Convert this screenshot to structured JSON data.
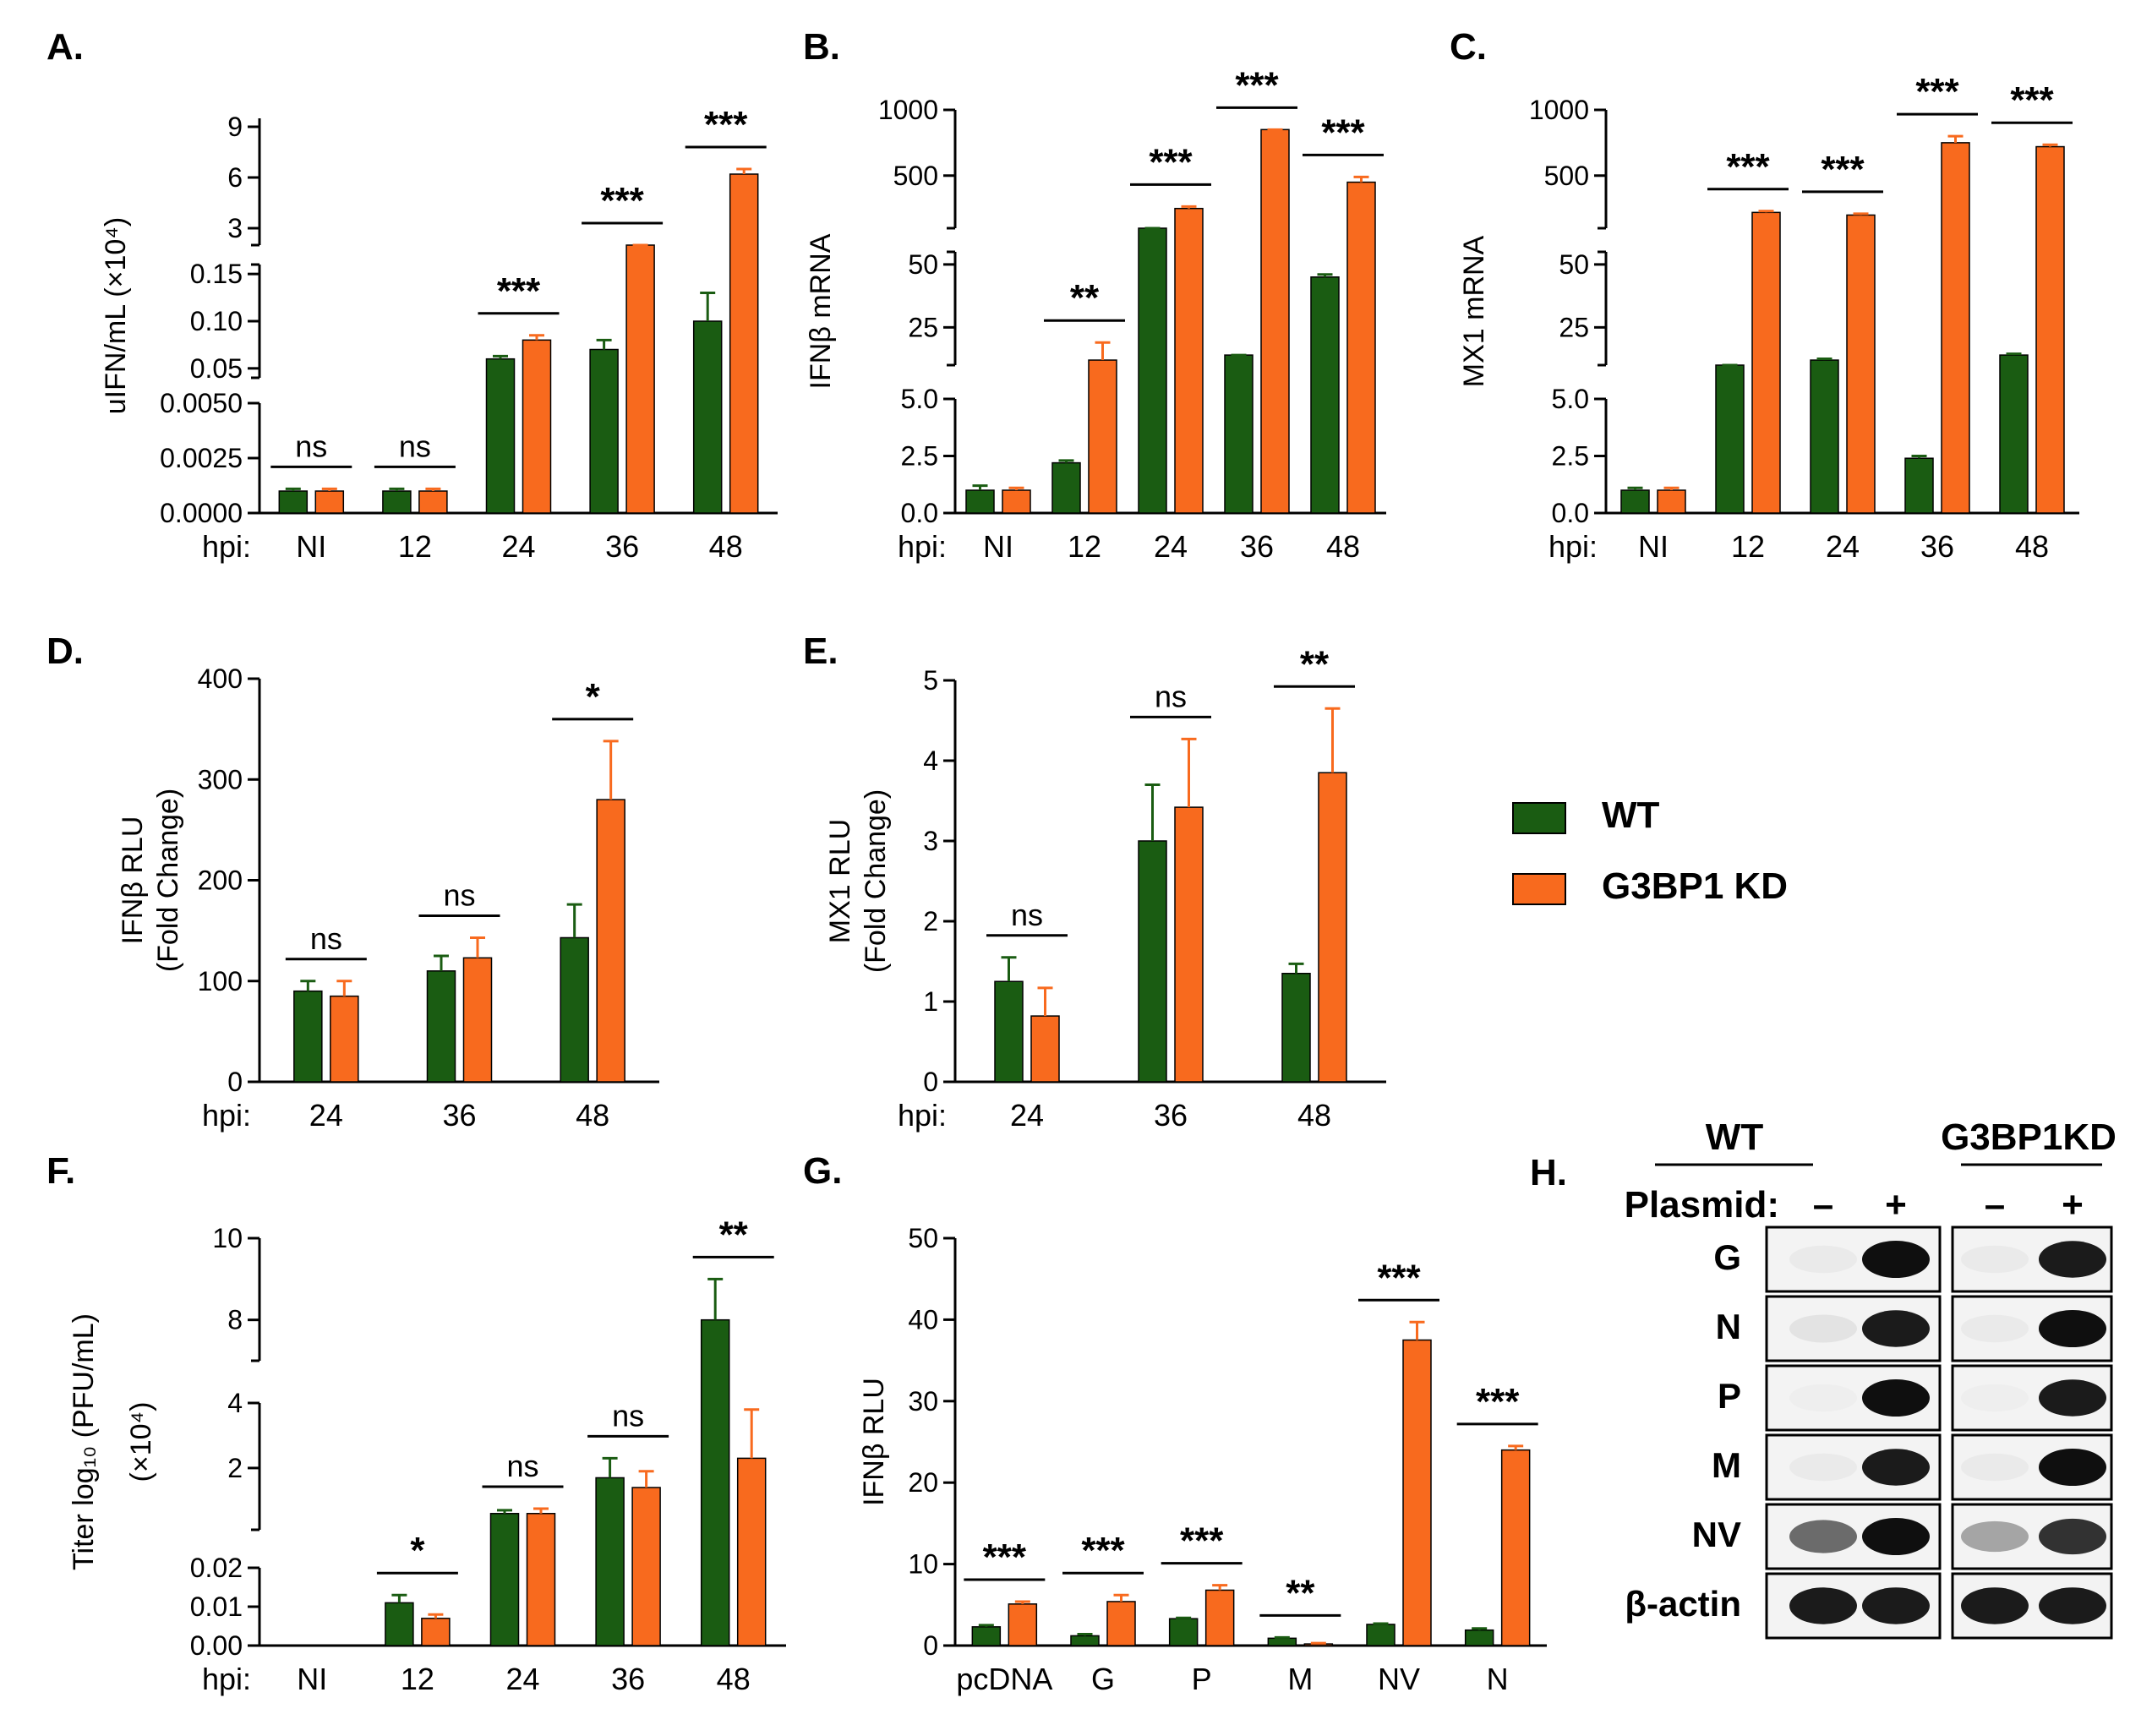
{
  "colors": {
    "wt": "#1a5c12",
    "kd": "#f86a1e",
    "axis": "#000000"
  },
  "legend": {
    "items": [
      {
        "label": "WT",
        "color": "#1a5c12"
      },
      {
        "label": "G3BP1 KD",
        "color": "#f86a1e"
      }
    ]
  },
  "chart_data": [
    {
      "panel": "A.",
      "type": "bar",
      "ylabel": "uIFN/mL (×10⁴)",
      "xprefix": "hpi:",
      "categories": [
        "NI",
        "12",
        "24",
        "36",
        "48"
      ],
      "series": [
        {
          "name": "WT",
          "values": [
            0.001,
            0.001,
            0.06,
            0.07,
            0.1
          ],
          "errors": [
            0.0001,
            0.0001,
            0.003,
            0.01,
            0.03
          ]
        },
        {
          "name": "G3BP1 KD",
          "values": [
            0.001,
            0.001,
            0.08,
            1.8,
            6.2
          ],
          "errors": [
            0.0001,
            0.0001,
            0.005,
            0.2,
            0.3
          ]
        }
      ],
      "segments": [
        {
          "range": [
            0,
            0.005
          ],
          "ticks": [
            {
              "v": 0,
              "t": "0.0000"
            },
            {
              "v": 0.0025,
              "t": "0.0025"
            },
            {
              "v": 0.005,
              "t": "0.0050"
            }
          ]
        },
        {
          "range": [
            0.04,
            0.16
          ],
          "ticks": [
            {
              "v": 0.05,
              "t": "0.05"
            },
            {
              "v": 0.1,
              "t": "0.10"
            },
            {
              "v": 0.15,
              "t": "0.15"
            }
          ]
        },
        {
          "range": [
            2,
            9.5
          ],
          "ticks": [
            {
              "v": 3,
              "t": "3"
            },
            {
              "v": 6,
              "t": "6"
            },
            {
              "v": 9,
              "t": "9"
            }
          ]
        }
      ],
      "significance": [
        "ns",
        "ns",
        "***",
        "***",
        "***"
      ]
    },
    {
      "panel": "B.",
      "type": "bar",
      "ylabel": "IFNβ mRNA",
      "xprefix": "hpi:",
      "categories": [
        "NI",
        "12",
        "24",
        "36",
        "48"
      ],
      "series": [
        {
          "name": "WT",
          "values": [
            1.0,
            2.2,
            70,
            14,
            45
          ],
          "errors": [
            0.2,
            0.1,
            3,
            0,
            1
          ]
        },
        {
          "name": "G3BP1 KD",
          "values": [
            1.0,
            12,
            250,
            850,
            450
          ],
          "errors": [
            0.1,
            7,
            15,
            0,
            40
          ]
        }
      ],
      "segments": [
        {
          "range": [
            0,
            5
          ],
          "ticks": [
            {
              "v": 0,
              "t": "0.0"
            },
            {
              "v": 2.5,
              "t": "2.5"
            },
            {
              "v": 5,
              "t": "5.0"
            }
          ]
        },
        {
          "range": [
            10,
            55
          ],
          "ticks": [
            {
              "v": 25,
              "t": "25"
            },
            {
              "v": 50,
              "t": "50"
            }
          ]
        },
        {
          "range": [
            100,
            1000
          ],
          "ticks": [
            {
              "v": 500,
              "t": "500"
            },
            {
              "v": 1000,
              "t": "1000"
            }
          ]
        }
      ],
      "significance": [
        "",
        "**",
        "***",
        "***",
        "***"
      ]
    },
    {
      "panel": "C.",
      "type": "bar",
      "ylabel": "MX1 mRNA",
      "xprefix": "hpi:",
      "categories": [
        "NI",
        "12",
        "24",
        "36",
        "48"
      ],
      "series": [
        {
          "name": "WT",
          "values": [
            1.0,
            8,
            12,
            2.4,
            14
          ],
          "errors": [
            0.1,
            0,
            0.5,
            0.1,
            0.5
          ]
        },
        {
          "name": "G3BP1 KD",
          "values": [
            1.0,
            220,
            200,
            750,
            720
          ],
          "errors": [
            0.1,
            10,
            10,
            50,
            15
          ]
        }
      ],
      "segments": [
        {
          "range": [
            0,
            5
          ],
          "ticks": [
            {
              "v": 0,
              "t": "0.0"
            },
            {
              "v": 2.5,
              "t": "2.5"
            },
            {
              "v": 5,
              "t": "5.0"
            }
          ]
        },
        {
          "range": [
            10,
            55
          ],
          "ticks": [
            {
              "v": 25,
              "t": "25"
            },
            {
              "v": 50,
              "t": "50"
            }
          ]
        },
        {
          "range": [
            100,
            1000
          ],
          "ticks": [
            {
              "v": 500,
              "t": "500"
            },
            {
              "v": 1000,
              "t": "1000"
            }
          ]
        }
      ],
      "significance": [
        "",
        "***",
        "***",
        "***",
        "***"
      ]
    },
    {
      "panel": "D.",
      "type": "bar",
      "ylabel": "IFNβ RLU",
      "ylabel2": "(Fold Change)",
      "xprefix": "hpi:",
      "categories": [
        "24",
        "36",
        "48"
      ],
      "series": [
        {
          "name": "WT",
          "values": [
            90,
            110,
            143
          ],
          "errors": [
            10,
            15,
            33
          ]
        },
        {
          "name": "G3BP1 KD",
          "values": [
            85,
            123,
            280
          ],
          "errors": [
            15,
            20,
            58
          ]
        }
      ],
      "segments": [
        {
          "range": [
            0,
            400
          ],
          "ticks": [
            {
              "v": 0,
              "t": "0"
            },
            {
              "v": 100,
              "t": "100"
            },
            {
              "v": 200,
              "t": "200"
            },
            {
              "v": 300,
              "t": "300"
            },
            {
              "v": 400,
              "t": "400"
            }
          ]
        }
      ],
      "significance": [
        "ns",
        "ns",
        "*"
      ]
    },
    {
      "panel": "E.",
      "type": "bar",
      "ylabel": "MX1 RLU",
      "ylabel2": "(Fold  Change)",
      "xprefix": "hpi:",
      "categories": [
        "24",
        "36",
        "48"
      ],
      "series": [
        {
          "name": "WT",
          "values": [
            1.25,
            3.0,
            1.35
          ],
          "errors": [
            0.3,
            0.7,
            0.12
          ]
        },
        {
          "name": "G3BP1 KD",
          "values": [
            0.82,
            3.42,
            3.85
          ],
          "errors": [
            0.35,
            0.85,
            0.8
          ]
        }
      ],
      "segments": [
        {
          "range": [
            0,
            5
          ],
          "ticks": [
            {
              "v": 0,
              "t": "0"
            },
            {
              "v": 1,
              "t": "1"
            },
            {
              "v": 2,
              "t": "2"
            },
            {
              "v": 3,
              "t": "3"
            },
            {
              "v": 4,
              "t": "4"
            },
            {
              "v": 5,
              "t": "5"
            }
          ]
        }
      ],
      "significance": [
        "ns",
        "ns",
        "**"
      ]
    },
    {
      "panel": "F.",
      "type": "bar",
      "ylabel": "Titer log₁₀ (PFU/mL)",
      "ylabel2": "(×10⁴)",
      "xprefix": "hpi:",
      "categories": [
        "NI",
        "12",
        "24",
        "36",
        "48"
      ],
      "series": [
        {
          "name": "WT",
          "values": [
            0,
            0.011,
            0.6,
            1.7,
            8.0
          ],
          "errors": [
            0,
            0.002,
            0.1,
            0.6,
            1.0
          ]
        },
        {
          "name": "G3BP1 KD",
          "values": [
            0,
            0.007,
            0.6,
            1.4,
            2.3
          ],
          "errors": [
            0,
            0.001,
            0.15,
            0.5,
            1.5
          ]
        }
      ],
      "segments": [
        {
          "range": [
            0,
            0.02
          ],
          "ticks": [
            {
              "v": 0,
              "t": "0.00"
            },
            {
              "v": 0.01,
              "t": "0.01"
            },
            {
              "v": 0.02,
              "t": "0.02"
            }
          ]
        },
        {
          "range": [
            0.1,
            4
          ],
          "ticks": [
            {
              "v": 2,
              "t": "2"
            },
            {
              "v": 4,
              "t": "4"
            }
          ]
        },
        {
          "range": [
            7,
            10
          ],
          "ticks": [
            {
              "v": 8,
              "t": "8"
            },
            {
              "v": 10,
              "t": "10"
            }
          ]
        }
      ],
      "significance": [
        "",
        "*",
        "ns",
        "ns",
        "**"
      ]
    },
    {
      "panel": "G.",
      "type": "bar",
      "ylabel": "IFNβ RLU",
      "xprefix": "",
      "categories": [
        "pcDNA",
        "G",
        "P",
        "M",
        "NV",
        "N"
      ],
      "series": [
        {
          "name": "WT",
          "values": [
            2.3,
            1.2,
            3.3,
            0.9,
            2.6,
            1.9
          ],
          "errors": [
            0.2,
            0.2,
            0.1,
            0.1,
            0.1,
            0.2
          ]
        },
        {
          "name": "G3BP1 KD",
          "values": [
            5.1,
            5.4,
            6.8,
            0.2,
            37.5,
            24.0
          ],
          "errors": [
            0.3,
            0.8,
            0.6,
            0.1,
            2.2,
            0.5
          ]
        }
      ],
      "segments": [
        {
          "range": [
            0,
            50
          ],
          "ticks": [
            {
              "v": 0,
              "t": "0"
            },
            {
              "v": 10,
              "t": "10"
            },
            {
              "v": 20,
              "t": "20"
            },
            {
              "v": 30,
              "t": "30"
            },
            {
              "v": 40,
              "t": "40"
            },
            {
              "v": 50,
              "t": "50"
            }
          ]
        }
      ],
      "significance": [
        "***",
        "***",
        "***",
        "**",
        "***",
        "***"
      ]
    }
  ],
  "blot": {
    "panel": "H.",
    "groups": [
      "WT",
      "G3BP1KD"
    ],
    "plasmid_label": "Plasmid:",
    "plasmid_states": [
      "–",
      "+",
      "–",
      "+"
    ],
    "rows": [
      {
        "label": "G",
        "intensity": [
          0.05,
          1.0,
          0.05,
          0.95
        ]
      },
      {
        "label": "N",
        "intensity": [
          0.08,
          0.95,
          0.05,
          1.0
        ]
      },
      {
        "label": "P",
        "intensity": [
          0.03,
          1.0,
          0.03,
          0.95
        ]
      },
      {
        "label": "M",
        "intensity": [
          0.05,
          0.95,
          0.05,
          1.0
        ]
      },
      {
        "label": "NV",
        "intensity": [
          0.6,
          1.0,
          0.35,
          0.85
        ]
      },
      {
        "label": "β-actin",
        "intensity": [
          0.95,
          0.95,
          0.95,
          0.95
        ]
      }
    ]
  }
}
